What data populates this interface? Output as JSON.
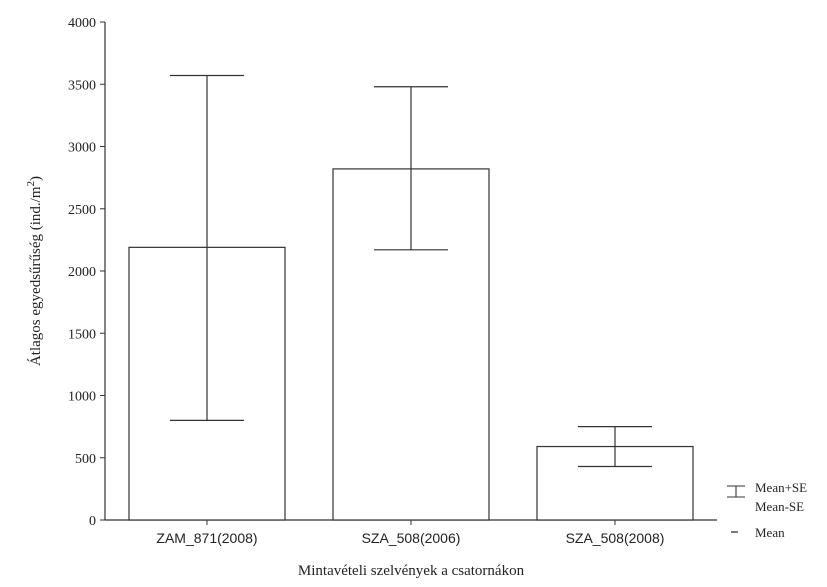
{
  "chart_data": {
    "type": "bar",
    "title": "",
    "xlabel": "Mintavételi szelvények a csatornákon",
    "ylabel": "Átlagos egyedsűrűség (ind./m",
    "ylabel_sup": "2",
    "ylabel_end": ")",
    "ylim": [
      0,
      4000
    ],
    "yticks": [
      "0",
      "500",
      "1000",
      "1500",
      "2000",
      "2500",
      "3000",
      "3500",
      "4000"
    ],
    "grid": false,
    "legend_position": "bottom-right",
    "categories": [
      "ZAM_871(2008)",
      "SZA_508(2006)",
      "SZA_508(2008)"
    ],
    "values": [
      2190,
      2820,
      590
    ],
    "error_upper": [
      3570,
      3480,
      750
    ],
    "error_lower": [
      800,
      2170,
      430
    ],
    "legend": {
      "error_plus": "Mean+SE",
      "error_minus": "Mean-SE",
      "mean": "Mean"
    },
    "colors": {
      "bar_fill": "#ffffff",
      "stroke": "#333333"
    }
  }
}
